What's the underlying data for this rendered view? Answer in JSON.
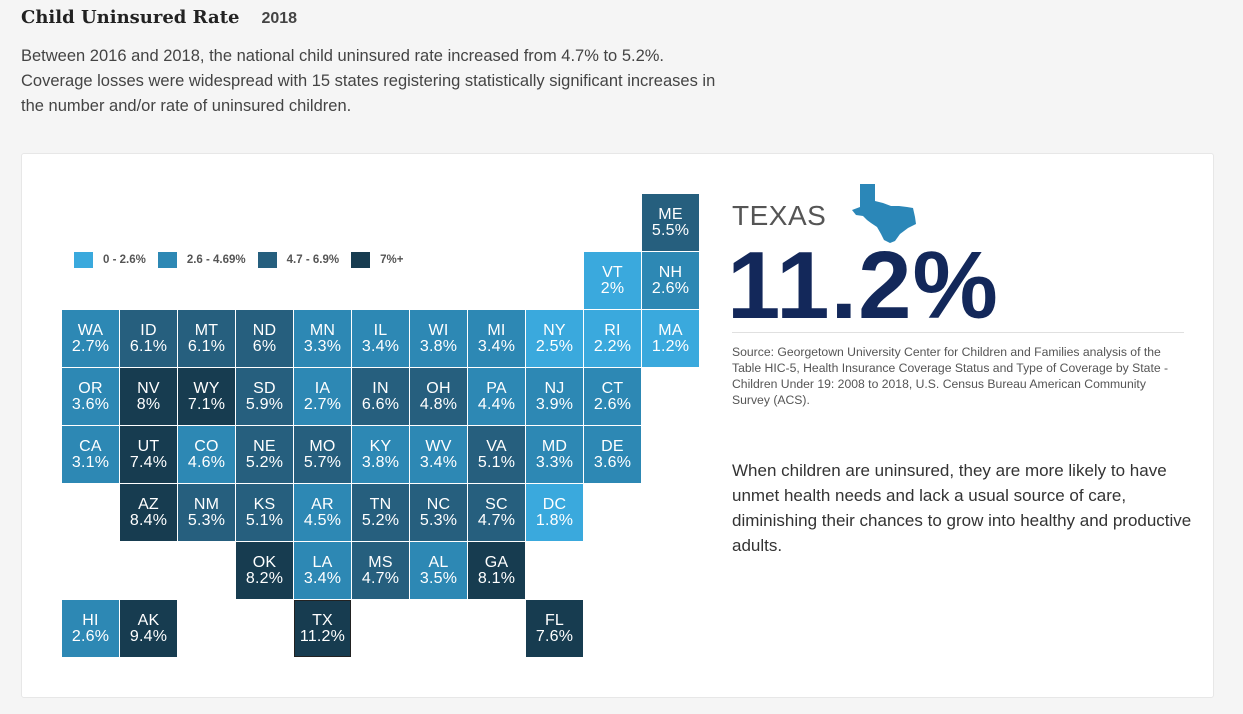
{
  "header": {
    "title": "Child Uninsured Rate",
    "year": "2018"
  },
  "intro": "Between 2016 and 2018, the national child uninsured rate increased from 4.7% to 5.2%. Coverage losses were widespread with 15 states registering statistically significant increases in the number and/or rate of uninsured children.",
  "legend": [
    {
      "label": "0 - 2.6%",
      "color": "#3aa9dd"
    },
    {
      "label": "2.6 - 4.69%",
      "color": "#2d88b4"
    },
    {
      "label": "4.7 - 6.9%",
      "color": "#265f7e"
    },
    {
      "label": "7%+",
      "color": "#173c50"
    }
  ],
  "map_tiles": [
    {
      "abbr": "ME",
      "value": "5.5%",
      "level": 2,
      "col": 10,
      "row": 0
    },
    {
      "abbr": "VT",
      "value": "2%",
      "level": 0,
      "col": 9,
      "row": 1
    },
    {
      "abbr": "NH",
      "value": "2.6%",
      "level": 1,
      "col": 10,
      "row": 1
    },
    {
      "abbr": "WA",
      "value": "2.7%",
      "level": 1,
      "col": 0,
      "row": 2
    },
    {
      "abbr": "ID",
      "value": "6.1%",
      "level": 2,
      "col": 1,
      "row": 2
    },
    {
      "abbr": "MT",
      "value": "6.1%",
      "level": 2,
      "col": 2,
      "row": 2
    },
    {
      "abbr": "ND",
      "value": "6%",
      "level": 2,
      "col": 3,
      "row": 2
    },
    {
      "abbr": "MN",
      "value": "3.3%",
      "level": 1,
      "col": 4,
      "row": 2
    },
    {
      "abbr": "IL",
      "value": "3.4%",
      "level": 1,
      "col": 5,
      "row": 2
    },
    {
      "abbr": "WI",
      "value": "3.8%",
      "level": 1,
      "col": 6,
      "row": 2
    },
    {
      "abbr": "MI",
      "value": "3.4%",
      "level": 1,
      "col": 7,
      "row": 2
    },
    {
      "abbr": "NY",
      "value": "2.5%",
      "level": 0,
      "col": 8,
      "row": 2
    },
    {
      "abbr": "RI",
      "value": "2.2%",
      "level": 0,
      "col": 9,
      "row": 2
    },
    {
      "abbr": "MA",
      "value": "1.2%",
      "level": 0,
      "col": 10,
      "row": 2
    },
    {
      "abbr": "OR",
      "value": "3.6%",
      "level": 1,
      "col": 0,
      "row": 3
    },
    {
      "abbr": "NV",
      "value": "8%",
      "level": 3,
      "col": 1,
      "row": 3
    },
    {
      "abbr": "WY",
      "value": "7.1%",
      "level": 3,
      "col": 2,
      "row": 3
    },
    {
      "abbr": "SD",
      "value": "5.9%",
      "level": 2,
      "col": 3,
      "row": 3
    },
    {
      "abbr": "IA",
      "value": "2.7%",
      "level": 1,
      "col": 4,
      "row": 3
    },
    {
      "abbr": "IN",
      "value": "6.6%",
      "level": 2,
      "col": 5,
      "row": 3
    },
    {
      "abbr": "OH",
      "value": "4.8%",
      "level": 2,
      "col": 6,
      "row": 3
    },
    {
      "abbr": "PA",
      "value": "4.4%",
      "level": 1,
      "col": 7,
      "row": 3
    },
    {
      "abbr": "NJ",
      "value": "3.9%",
      "level": 1,
      "col": 8,
      "row": 3
    },
    {
      "abbr": "CT",
      "value": "2.6%",
      "level": 1,
      "col": 9,
      "row": 3
    },
    {
      "abbr": "CA",
      "value": "3.1%",
      "level": 1,
      "col": 0,
      "row": 4
    },
    {
      "abbr": "UT",
      "value": "7.4%",
      "level": 3,
      "col": 1,
      "row": 4
    },
    {
      "abbr": "CO",
      "value": "4.6%",
      "level": 1,
      "col": 2,
      "row": 4
    },
    {
      "abbr": "NE",
      "value": "5.2%",
      "level": 2,
      "col": 3,
      "row": 4
    },
    {
      "abbr": "MO",
      "value": "5.7%",
      "level": 2,
      "col": 4,
      "row": 4
    },
    {
      "abbr": "KY",
      "value": "3.8%",
      "level": 1,
      "col": 5,
      "row": 4
    },
    {
      "abbr": "WV",
      "value": "3.4%",
      "level": 1,
      "col": 6,
      "row": 4
    },
    {
      "abbr": "VA",
      "value": "5.1%",
      "level": 2,
      "col": 7,
      "row": 4
    },
    {
      "abbr": "MD",
      "value": "3.3%",
      "level": 1,
      "col": 8,
      "row": 4
    },
    {
      "abbr": "DE",
      "value": "3.6%",
      "level": 1,
      "col": 9,
      "row": 4
    },
    {
      "abbr": "AZ",
      "value": "8.4%",
      "level": 3,
      "col": 1,
      "row": 5
    },
    {
      "abbr": "NM",
      "value": "5.3%",
      "level": 2,
      "col": 2,
      "row": 5
    },
    {
      "abbr": "KS",
      "value": "5.1%",
      "level": 2,
      "col": 3,
      "row": 5
    },
    {
      "abbr": "AR",
      "value": "4.5%",
      "level": 1,
      "col": 4,
      "row": 5
    },
    {
      "abbr": "TN",
      "value": "5.2%",
      "level": 2,
      "col": 5,
      "row": 5
    },
    {
      "abbr": "NC",
      "value": "5.3%",
      "level": 2,
      "col": 6,
      "row": 5
    },
    {
      "abbr": "SC",
      "value": "4.7%",
      "level": 2,
      "col": 7,
      "row": 5
    },
    {
      "abbr": "DC",
      "value": "1.8%",
      "level": 0,
      "col": 8,
      "row": 5
    },
    {
      "abbr": "OK",
      "value": "8.2%",
      "level": 3,
      "col": 3,
      "row": 6
    },
    {
      "abbr": "LA",
      "value": "3.4%",
      "level": 1,
      "col": 4,
      "row": 6
    },
    {
      "abbr": "MS",
      "value": "4.7%",
      "level": 2,
      "col": 5,
      "row": 6
    },
    {
      "abbr": "AL",
      "value": "3.5%",
      "level": 1,
      "col": 6,
      "row": 6
    },
    {
      "abbr": "GA",
      "value": "8.1%",
      "level": 3,
      "col": 7,
      "row": 6
    },
    {
      "abbr": "HI",
      "value": "2.6%",
      "level": 1,
      "col": 0,
      "row": 7
    },
    {
      "abbr": "AK",
      "value": "9.4%",
      "level": 3,
      "col": 1,
      "row": 7
    },
    {
      "abbr": "TX",
      "value": "11.2%",
      "level": 3,
      "col": 4,
      "row": 7,
      "selected": true
    },
    {
      "abbr": "FL",
      "value": "7.6%",
      "level": 3,
      "col": 8,
      "row": 7
    }
  ],
  "detail": {
    "state_name": "TEXAS",
    "state_icon": "texas-shape-icon",
    "rate": "11.2%",
    "source": "Source: Georgetown University Center for Children and Families analysis of the Table HIC-5, Health Insurance Coverage Status and Type of Coverage by State - Children Under 19: 2008 to 2018, U.S. Census Bureau American Community Survey (ACS).",
    "description": "When children are uninsured, they are more likely to have unmet health needs and lack a usual source of care, diminishing their chances to grow into healthy and productive adults."
  }
}
